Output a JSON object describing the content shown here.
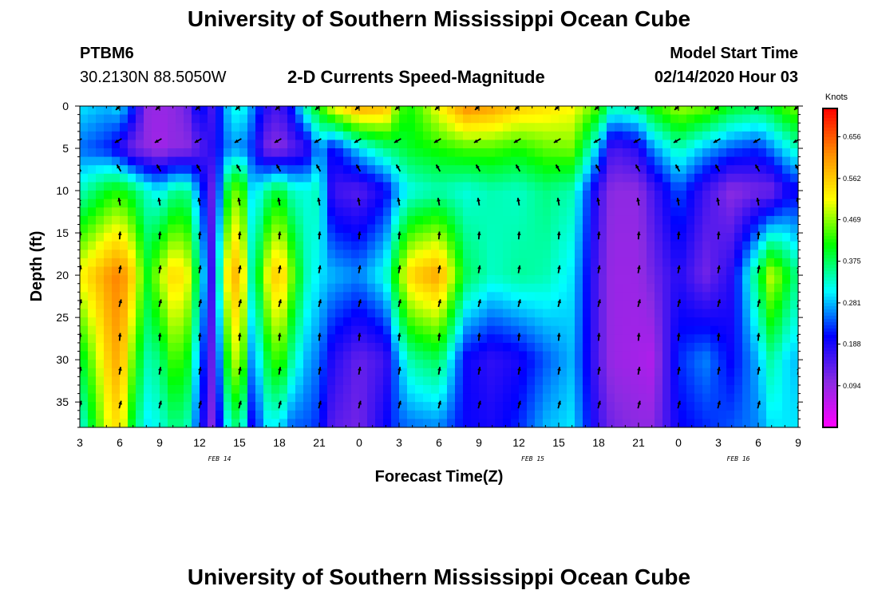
{
  "header": {
    "title": "University of Southern Mississippi Ocean Cube",
    "station_id": "PTBM6",
    "station_coords": "30.2130N 88.5050W",
    "plot_title": "2-D Currents Speed-Magnitude",
    "model_start_label": "Model Start Time",
    "model_start_value": "02/14/2020 Hour 03"
  },
  "footer": {
    "title": "University of Southern Mississippi Ocean Cube"
  },
  "chart_data": {
    "type": "heatmap",
    "xlabel": "Forecast Time(Z)",
    "ylabel": "Depth (ft)",
    "x_ticks": [
      "3",
      "6",
      "9",
      "12",
      "15",
      "18",
      "21",
      "0",
      "3",
      "6",
      "9",
      "12",
      "15",
      "18",
      "21",
      "0",
      "3",
      "6",
      "9"
    ],
    "date_labels": [
      {
        "label": "FEB 14",
        "at_tick": 3.5
      },
      {
        "label": "FEB 15",
        "at_tick": 11.35
      },
      {
        "label": "FEB 16",
        "at_tick": 16.5
      }
    ],
    "y_ticks": [
      0,
      5,
      10,
      15,
      20,
      25,
      30,
      35
    ],
    "ylim": [
      0,
      38
    ],
    "x_range_hours": [
      3,
      57
    ],
    "colorbar": {
      "title": "Knots",
      "ticks": [
        "0.656",
        "0.562",
        "0.469",
        "0.375",
        "0.281",
        "0.188",
        "0.094"
      ],
      "range": [
        0.0,
        0.72
      ],
      "colors": [
        "#ff00ff",
        "#8a2be2",
        "#0000ff",
        "#00ffff",
        "#00ff00",
        "#ffff00",
        "#ff8c00",
        "#ff0000"
      ]
    },
    "speed_profiles": [
      {
        "hour": 3,
        "d0": 0.3,
        "d5": 0.25,
        "d10": 0.33,
        "d20": 0.52,
        "d30": 0.38,
        "d38": 0.31
      },
      {
        "hour": 5,
        "d0": 0.28,
        "d5": 0.22,
        "d10": 0.4,
        "d20": 0.6,
        "d30": 0.55,
        "d38": 0.5
      },
      {
        "hour": 6,
        "d0": 0.3,
        "d5": 0.18,
        "d10": 0.42,
        "d20": 0.63,
        "d30": 0.6,
        "d38": 0.55
      },
      {
        "hour": 7,
        "d0": 0.22,
        "d5": 0.12,
        "d10": 0.38,
        "d20": 0.55,
        "d30": 0.45,
        "d38": 0.38
      },
      {
        "hour": 8,
        "d0": 0.1,
        "d5": 0.1,
        "d10": 0.33,
        "d20": 0.4,
        "d30": 0.34,
        "d38": 0.3
      },
      {
        "hour": 9,
        "d0": 0.09,
        "d5": 0.08,
        "d10": 0.3,
        "d20": 0.48,
        "d30": 0.36,
        "d38": 0.32
      },
      {
        "hour": 10,
        "d0": 0.1,
        "d5": 0.1,
        "d10": 0.35,
        "d20": 0.55,
        "d30": 0.44,
        "d38": 0.36
      },
      {
        "hour": 11,
        "d0": 0.12,
        "d5": 0.1,
        "d10": 0.36,
        "d20": 0.53,
        "d30": 0.42,
        "d38": 0.35
      },
      {
        "hour": 12,
        "d0": 0.22,
        "d5": 0.14,
        "d10": 0.25,
        "d20": 0.34,
        "d30": 0.26,
        "d38": 0.22
      },
      {
        "hour": 13,
        "d0": 0.15,
        "d5": 0.18,
        "d10": 0.12,
        "d20": 0.15,
        "d30": 0.12,
        "d38": 0.1
      },
      {
        "hour": 14,
        "d0": 0.28,
        "d5": 0.25,
        "d10": 0.38,
        "d20": 0.52,
        "d30": 0.4,
        "d38": 0.3
      },
      {
        "hour": 15,
        "d0": 0.33,
        "d5": 0.27,
        "d10": 0.48,
        "d20": 0.6,
        "d30": 0.52,
        "d38": 0.38
      },
      {
        "hour": 16,
        "d0": 0.26,
        "d5": 0.22,
        "d10": 0.28,
        "d20": 0.32,
        "d30": 0.24,
        "d38": 0.18
      },
      {
        "hour": 17,
        "d0": 0.18,
        "d5": 0.12,
        "d10": 0.35,
        "d20": 0.5,
        "d30": 0.38,
        "d38": 0.3
      },
      {
        "hour": 18,
        "d0": 0.15,
        "d5": 0.1,
        "d10": 0.4,
        "d20": 0.58,
        "d30": 0.45,
        "d38": 0.3
      },
      {
        "hour": 19,
        "d0": 0.22,
        "d5": 0.14,
        "d10": 0.33,
        "d20": 0.45,
        "d30": 0.34,
        "d38": 0.24
      },
      {
        "hour": 20,
        "d0": 0.35,
        "d5": 0.16,
        "d10": 0.32,
        "d20": 0.34,
        "d30": 0.28,
        "d38": 0.24
      },
      {
        "hour": 21,
        "d0": 0.42,
        "d5": 0.28,
        "d10": 0.34,
        "d20": 0.3,
        "d30": 0.25,
        "d38": 0.22
      },
      {
        "hour": 22,
        "d0": 0.52,
        "d5": 0.2,
        "d10": 0.16,
        "d20": 0.28,
        "d30": 0.18,
        "d38": 0.14
      },
      {
        "hour": 24,
        "d0": 0.6,
        "d5": 0.3,
        "d10": 0.14,
        "d20": 0.26,
        "d30": 0.13,
        "d38": 0.12
      },
      {
        "hour": 26,
        "d0": 0.58,
        "d5": 0.36,
        "d10": 0.2,
        "d20": 0.32,
        "d30": 0.16,
        "d38": 0.2
      },
      {
        "hour": 27,
        "d0": 0.44,
        "d5": 0.38,
        "d10": 0.28,
        "d20": 0.46,
        "d30": 0.28,
        "d38": 0.24
      },
      {
        "hour": 28,
        "d0": 0.42,
        "d5": 0.4,
        "d10": 0.32,
        "d20": 0.56,
        "d30": 0.35,
        "d38": 0.25
      },
      {
        "hour": 30,
        "d0": 0.52,
        "d5": 0.42,
        "d10": 0.34,
        "d20": 0.6,
        "d30": 0.38,
        "d38": 0.26
      },
      {
        "hour": 32,
        "d0": 0.62,
        "d5": 0.44,
        "d10": 0.32,
        "d20": 0.38,
        "d30": 0.2,
        "d38": 0.2
      },
      {
        "hour": 34,
        "d0": 0.6,
        "d5": 0.44,
        "d10": 0.34,
        "d20": 0.33,
        "d30": 0.17,
        "d38": 0.19
      },
      {
        "hour": 36,
        "d0": 0.56,
        "d5": 0.42,
        "d10": 0.33,
        "d20": 0.35,
        "d30": 0.19,
        "d38": 0.22
      },
      {
        "hour": 38,
        "d0": 0.54,
        "d5": 0.45,
        "d10": 0.36,
        "d20": 0.34,
        "d30": 0.24,
        "d38": 0.28
      },
      {
        "hour": 40,
        "d0": 0.52,
        "d5": 0.46,
        "d10": 0.34,
        "d20": 0.3,
        "d30": 0.28,
        "d38": 0.3
      },
      {
        "hour": 42,
        "d0": 0.44,
        "d5": 0.28,
        "d10": 0.16,
        "d20": 0.14,
        "d30": 0.14,
        "d38": 0.16
      },
      {
        "hour": 43,
        "d0": 0.34,
        "d5": 0.15,
        "d10": 0.1,
        "d20": 0.09,
        "d30": 0.09,
        "d38": 0.12
      },
      {
        "hour": 45,
        "d0": 0.36,
        "d5": 0.18,
        "d10": 0.1,
        "d20": 0.09,
        "d30": 0.08,
        "d38": 0.1
      },
      {
        "hour": 46,
        "d0": 0.42,
        "d5": 0.26,
        "d10": 0.15,
        "d20": 0.12,
        "d30": 0.07,
        "d38": 0.1
      },
      {
        "hour": 48,
        "d0": 0.48,
        "d5": 0.34,
        "d10": 0.24,
        "d20": 0.18,
        "d30": 0.22,
        "d38": 0.2
      },
      {
        "hour": 50,
        "d0": 0.46,
        "d5": 0.28,
        "d10": 0.16,
        "d20": 0.12,
        "d30": 0.26,
        "d38": 0.22
      },
      {
        "hour": 52,
        "d0": 0.4,
        "d5": 0.24,
        "d10": 0.1,
        "d20": 0.18,
        "d30": 0.2,
        "d38": 0.24
      },
      {
        "hour": 54,
        "d0": 0.38,
        "d5": 0.22,
        "d10": 0.12,
        "d20": 0.38,
        "d30": 0.28,
        "d38": 0.26
      },
      {
        "hour": 55,
        "d0": 0.4,
        "d5": 0.26,
        "d10": 0.12,
        "d20": 0.5,
        "d30": 0.35,
        "d38": 0.3
      },
      {
        "hour": 56,
        "d0": 0.44,
        "d5": 0.3,
        "d10": 0.18,
        "d20": 0.42,
        "d30": 0.3,
        "d38": 0.3
      },
      {
        "hour": 57,
        "d0": 0.46,
        "d5": 0.34,
        "d10": 0.2,
        "d20": 0.35,
        "d30": 0.28,
        "d38": 0.3
      }
    ],
    "vector_depths": [
      0,
      4,
      7.5,
      11.5,
      15.5,
      19.5,
      23.5,
      27.5,
      31.5,
      35.5
    ],
    "vector_directions_deg_by_depth": [
      {
        "depth": 0,
        "deg": 225
      },
      {
        "depth": 4,
        "deg": 240
      },
      {
        "depth": 7.5,
        "deg": 330
      },
      {
        "depth": 11.5,
        "deg": 350
      },
      {
        "depth": 15.5,
        "deg": 5
      },
      {
        "depth": 19.5,
        "deg": 10
      },
      {
        "depth": 23.5,
        "deg": 15
      },
      {
        "depth": 27.5,
        "deg": 5
      },
      {
        "depth": 31.5,
        "deg": 10
      },
      {
        "depth": 35.5,
        "deg": 15
      }
    ]
  }
}
